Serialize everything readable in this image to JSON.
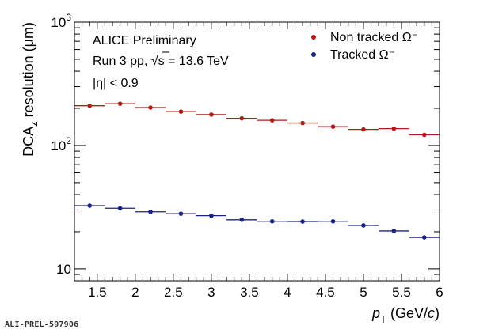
{
  "chart_data": {
    "type": "scatter",
    "xlabel": {
      "var": "p",
      "sub": "T",
      "unit_pre": " (GeV/",
      "unit_var": "c",
      "unit_post": ")"
    },
    "ylabel": {
      "pre": "DCA",
      "sub": "z",
      "post": " resolution (μm)"
    },
    "yscale": "log",
    "xlim": [
      1.2,
      6.0
    ],
    "ylim": [
      8,
      1000
    ],
    "xticks": [
      1.5,
      2,
      2.5,
      3,
      3.5,
      4,
      4.5,
      5,
      5.5,
      6
    ],
    "xtick_labels": [
      "1.5",
      "2",
      "2.5",
      "3",
      "3.5",
      "4",
      "4.5",
      "5",
      "5.5",
      "6"
    ],
    "ytick_labels": [
      {
        "value": 10,
        "base": "10",
        "exp": ""
      },
      {
        "value": 100,
        "base": "10",
        "exp": "2"
      },
      {
        "value": 1000,
        "base": "10",
        "exp": "3"
      }
    ],
    "annotations": [
      "ALICE Preliminary",
      "Run 3 pp, √s = 13.6 TeV",
      "|η| < 0.9"
    ],
    "legend_position": "top-right",
    "series": [
      {
        "name": "Non tracked Ω⁻",
        "color": "#b01c1c",
        "x": [
          1.4,
          1.8,
          2.2,
          2.6,
          3.0,
          3.4,
          3.8,
          4.2,
          4.6,
          5.0,
          5.4,
          5.8
        ],
        "xerr": [
          0.2,
          0.2,
          0.2,
          0.2,
          0.2,
          0.2,
          0.2,
          0.2,
          0.2,
          0.2,
          0.2,
          0.2
        ],
        "y": [
          210,
          218,
          203,
          188,
          178,
          166,
          160,
          152,
          142,
          135,
          137,
          122
        ]
      },
      {
        "name": "Tracked Ω⁻",
        "color": "#1a237e",
        "x": [
          1.4,
          1.8,
          2.2,
          2.6,
          3.0,
          3.4,
          3.8,
          4.2,
          4.6,
          5.0,
          5.4,
          5.8
        ],
        "xerr": [
          0.2,
          0.2,
          0.2,
          0.2,
          0.2,
          0.2,
          0.2,
          0.2,
          0.2,
          0.2,
          0.2,
          0.2
        ],
        "y": [
          32.5,
          31.0,
          29.0,
          28.0,
          27.0,
          25.0,
          24.3,
          24.2,
          24.3,
          22.5,
          20.3,
          18.0
        ]
      }
    ]
  },
  "footer": {
    "id_label": "ALI-PREL-597906"
  }
}
